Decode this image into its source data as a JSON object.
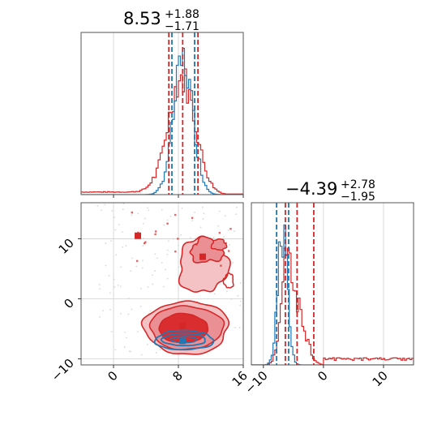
{
  "colors": {
    "red": "#d62728",
    "blue": "#1f77b4",
    "red_fill_light": "#f4c2c4",
    "red_fill_mid": "#ea8f93",
    "red_fill_dark": "#d92d30",
    "grid": "#d0d0d0"
  },
  "chart_data": [
    {
      "type": "histogram",
      "panel": "top-left marginal (parameter 1)",
      "title": {
        "median": "8.53",
        "plus": "+1.88",
        "minus": "−1.71"
      },
      "xlim": [
        -4,
        16
      ],
      "x_ticks": [
        0,
        8,
        16
      ],
      "grid": true,
      "series": [
        {
          "color": "red",
          "quantiles": [
            6.82,
            8.53,
            10.41
          ]
        },
        {
          "color": "blue",
          "quantiles": [
            7.2,
            10.0
          ]
        }
      ]
    },
    {
      "type": "histogram",
      "panel": "bottom-right marginal (parameter 2)",
      "title": {
        "median": "−4.39",
        "plus": "+2.78",
        "minus": "−1.95"
      },
      "xlim": [
        -12,
        15
      ],
      "x_ticks": [
        -10,
        0,
        10
      ],
      "x_tick_labels": [
        "−10",
        "0",
        "10"
      ],
      "grid": true,
      "series": [
        {
          "color": "red",
          "quantiles": [
            -6.34,
            -4.39,
            -1.61
          ]
        },
        {
          "color": "blue",
          "quantiles": [
            -7.8,
            -5.8
          ]
        }
      ]
    },
    {
      "type": "contour",
      "panel": "bottom-left 2D joint",
      "xlim": [
        -4,
        16
      ],
      "ylim": [
        -11,
        16
      ],
      "x_ticks": [
        0,
        8,
        16
      ],
      "y_ticks": [
        -10,
        0,
        10
      ],
      "y_tick_labels": [
        "−10",
        "0",
        "10"
      ],
      "grid": true,
      "series": [
        {
          "color": "red",
          "markers": [
            [
              3,
              10.5
            ],
            [
              11,
              7
            ],
            [
              8.5,
              -4.5
            ]
          ]
        },
        {
          "color": "blue",
          "markers": [
            [
              8.5,
              -7
            ]
          ]
        }
      ]
    }
  ]
}
